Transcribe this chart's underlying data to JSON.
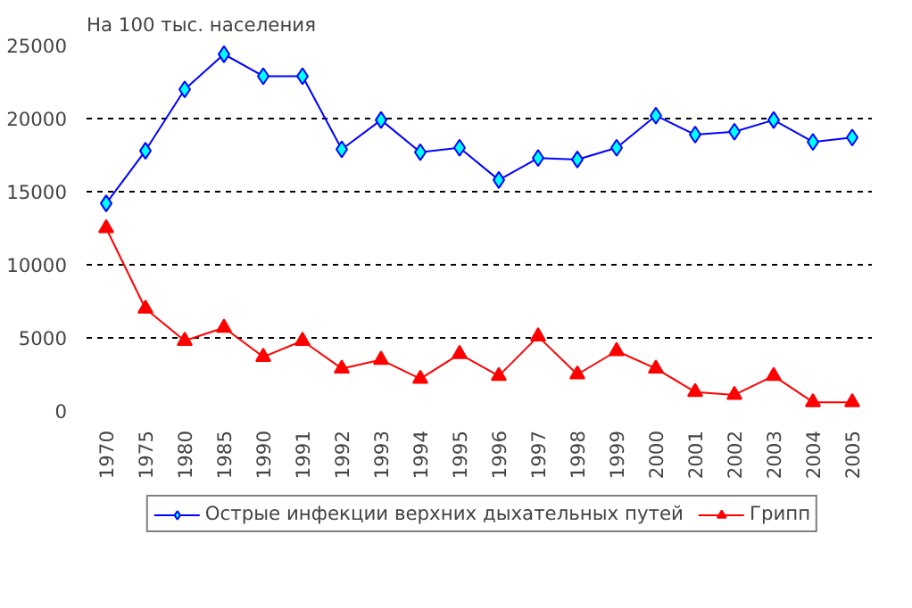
{
  "chart_data": {
    "type": "line",
    "ylabel": "На 100 тыс. населения",
    "categories": [
      "1970",
      "1975",
      "1980",
      "1985",
      "1990",
      "1991",
      "1992",
      "1993",
      "1994",
      "1995",
      "1996",
      "1997",
      "1998",
      "1999",
      "2000",
      "2001",
      "2002",
      "2003",
      "2004",
      "2005"
    ],
    "series": [
      {
        "name": "Острые инфекции верхних дыхательных путей",
        "color": "#0000ff",
        "marker": "diamond",
        "values": [
          14200,
          17800,
          22000,
          24400,
          22900,
          22900,
          17900,
          19900,
          17700,
          18000,
          15800,
          17300,
          17200,
          18000,
          20200,
          18900,
          19100,
          19900,
          18400,
          18700
        ]
      },
      {
        "name": "Грипп",
        "color": "#ff0000",
        "marker": "triangle",
        "values": [
          12500,
          7000,
          4800,
          5700,
          3700,
          4800,
          2900,
          3500,
          2200,
          3900,
          2400,
          5100,
          2500,
          4100,
          2900,
          1300,
          1100,
          2400,
          600,
          600
        ]
      }
    ],
    "ylim": [
      0,
      25000
    ],
    "yticks": [
      0,
      5000,
      10000,
      15000,
      20000,
      25000
    ],
    "grid": "y",
    "legend": "bottom"
  }
}
